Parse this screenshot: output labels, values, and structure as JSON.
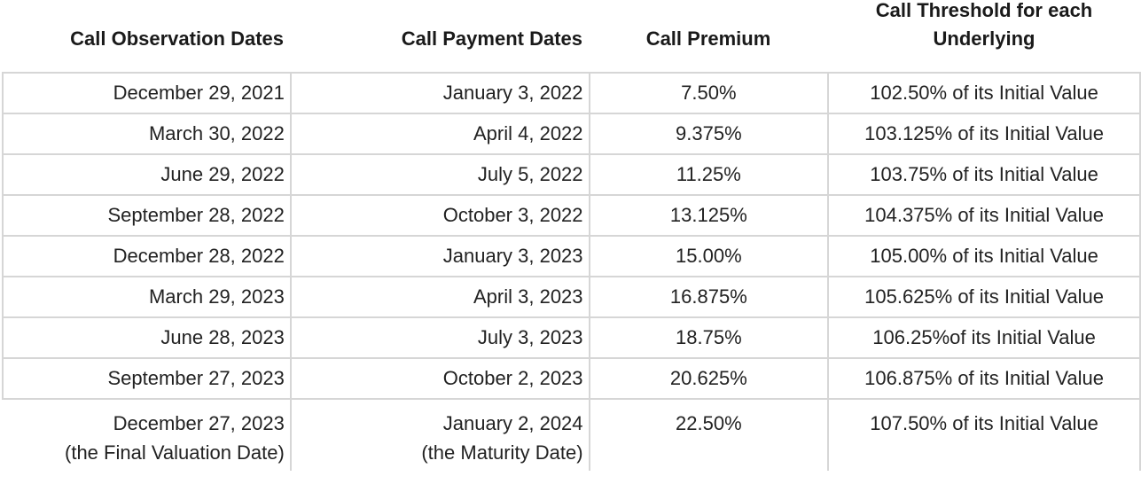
{
  "headers": {
    "observation": "Call Observation Dates",
    "payment": "Call Payment Dates",
    "premium": "Call Premium",
    "threshold_line1": "Call Threshold for each",
    "threshold_line2": "Underlying"
  },
  "rows": [
    {
      "observation": "December 29, 2021",
      "payment": "January 3, 2022",
      "premium": "7.50%",
      "threshold": "102.50% of its Initial Value"
    },
    {
      "observation": "March 30, 2022",
      "payment": "April 4, 2022",
      "premium": "9.375%",
      "threshold": "103.125% of its Initial Value"
    },
    {
      "observation": "June 29, 2022",
      "payment": "July 5, 2022",
      "premium": "11.25%",
      "threshold": "103.75% of its Initial Value"
    },
    {
      "observation": "September 28, 2022",
      "payment": "October 3, 2022",
      "premium": "13.125%",
      "threshold": "104.375% of its Initial Value"
    },
    {
      "observation": "December 28, 2022",
      "payment": "January 3, 2023",
      "premium": "15.00%",
      "threshold": "105.00% of its Initial Value"
    },
    {
      "observation": "March 29, 2023",
      "payment": "April 3, 2023",
      "premium": "16.875%",
      "threshold": "105.625% of its Initial Value"
    },
    {
      "observation": "June 28, 2023",
      "payment": "July 3, 2023",
      "premium": "18.75%",
      "threshold": "106.25%of its Initial Value"
    },
    {
      "observation": "September 27, 2023",
      "payment": "October 2, 2023",
      "premium": "20.625%",
      "threshold": "106.875% of its Initial Value"
    }
  ],
  "final_row": {
    "observation": "December 27, 2023",
    "observation_note": "(the Final Valuation Date)",
    "payment": "January 2, 2024",
    "payment_note": "(the Maturity Date)",
    "premium": "22.50%",
    "threshold": "107.50% of its Initial Value"
  }
}
